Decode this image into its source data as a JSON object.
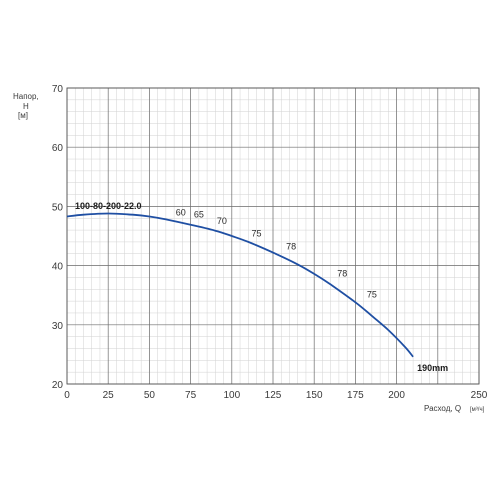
{
  "chart_data": {
    "type": "line",
    "xlabel": "Расход, Q",
    "xunit": "[м³/ч]",
    "ylabel_line1": "Напор,",
    "ylabel_line2": "Н",
    "yunit": "[м]",
    "xlim": [
      0,
      250
    ],
    "ylim": [
      20,
      70
    ],
    "x_ticks": [
      0,
      25,
      50,
      75,
      100,
      125,
      150,
      175,
      200,
      250
    ],
    "y_ticks": [
      20,
      30,
      40,
      50,
      60,
      70
    ],
    "grid": true,
    "series": [
      {
        "name": "190mm",
        "color": "#1f4fa3",
        "x": [
          0,
          10,
          25,
          40,
          50,
          60,
          75,
          90,
          100,
          110,
          125,
          140,
          150,
          160,
          175,
          185,
          195,
          205,
          210
        ],
        "y": [
          48.3,
          48.6,
          48.8,
          48.6,
          48.3,
          47.8,
          46.9,
          45.9,
          45.0,
          44.0,
          42.2,
          40.2,
          38.6,
          36.8,
          33.8,
          31.5,
          29.1,
          26.3,
          24.6
        ]
      }
    ],
    "model_label": "100-80-200-22.0",
    "efficiency_labels": [
      {
        "text": "60",
        "x": 69,
        "y": 48.5
      },
      {
        "text": "65",
        "x": 80,
        "y": 48.1
      },
      {
        "text": "70",
        "x": 94,
        "y": 47.0
      },
      {
        "text": "75",
        "x": 115,
        "y": 44.9
      },
      {
        "text": "78",
        "x": 136,
        "y": 42.7
      },
      {
        "text": "78",
        "x": 167,
        "y": 38.2
      },
      {
        "text": "75",
        "x": 185,
        "y": 34.6
      }
    ]
  }
}
